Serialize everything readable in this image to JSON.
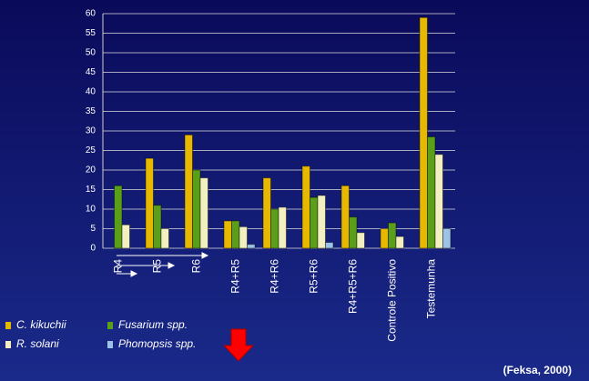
{
  "chart_data": {
    "type": "bar",
    "source": "(Feksa, 2000)",
    "categories": [
      "R4",
      "R5",
      "R6",
      "R4+R5",
      "R4+R6",
      "R5+R6",
      "R4+R5+R6",
      "Controle Positivo",
      "Testemunha"
    ],
    "series": [
      {
        "name": "C. kikuchii",
        "color": "#e6b800",
        "values": [
          0,
          23,
          29,
          7,
          18,
          21,
          16,
          5,
          59
        ]
      },
      {
        "name": "Fusarium spp.",
        "color": "#5a9e1a",
        "values": [
          16,
          11,
          20,
          7,
          10,
          13,
          8,
          6.5,
          28.5
        ]
      },
      {
        "name": "R. solani",
        "color": "#f2f0c0",
        "values": [
          6,
          5,
          18,
          5.5,
          10.5,
          13.5,
          4,
          3,
          24
        ]
      },
      {
        "name": "Phomopsis spp.",
        "color": "#9cc3e6",
        "values": [
          0,
          0,
          0,
          1,
          0,
          1.5,
          0,
          0,
          5
        ]
      }
    ],
    "ylim": [
      0,
      60
    ],
    "yticks": [
      0,
      5,
      10,
      15,
      20,
      25,
      30,
      35,
      40,
      45,
      50,
      55,
      60
    ],
    "grid": true
  }
}
